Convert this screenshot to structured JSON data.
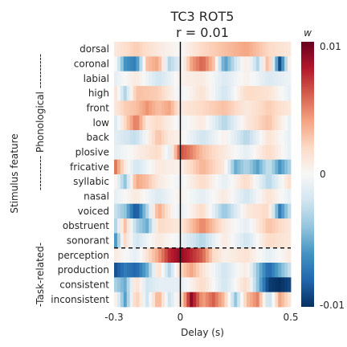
{
  "chart_data": {
    "type": "heatmap",
    "title": "TC3 ROT5",
    "subtitle": "r = 0.01",
    "xlabel": "Delay (s)",
    "ylabel": "Stimulus feature",
    "group_labels": [
      "---------- Phonological ----------",
      "-Task-related-"
    ],
    "x_range": [
      -0.3,
      0.5
    ],
    "x_ticks": [
      "-0.3",
      "0",
      "0.5"
    ],
    "x_tick_values": [
      -0.3,
      0,
      0.5
    ],
    "colorbar": {
      "label": "w",
      "ticks": [
        "0.01",
        "0",
        "-0.01"
      ],
      "tick_values": [
        0.01,
        0,
        -0.01
      ],
      "range": [
        -0.01,
        0.01
      ],
      "colormap": "RdBu_r"
    },
    "features": [
      "dorsal",
      "coronal",
      "labial",
      "high",
      "front",
      "low",
      "back",
      "plosive",
      "fricative",
      "syllabic",
      "nasal",
      "voiced",
      "obstruent",
      "sonorant",
      "perception",
      "production",
      "consistent",
      "inconsistent"
    ],
    "separator_after_row": 13,
    "zero_line_x": 0,
    "profiles": [
      [
        [
          -0.3,
          0.1
        ],
        [
          -0.2,
          0.25
        ],
        [
          -0.1,
          0.1
        ],
        [
          0,
          0
        ],
        [
          0.1,
          0.2
        ],
        [
          0.2,
          0.3
        ],
        [
          0.3,
          0.4
        ],
        [
          0.4,
          0.2
        ],
        [
          0.5,
          0.1
        ]
      ],
      [
        [
          -0.3,
          0.1
        ],
        [
          -0.25,
          -0.6
        ],
        [
          -0.2,
          -0.7
        ],
        [
          -0.15,
          0.3
        ],
        [
          -0.1,
          0.4
        ],
        [
          -0.05,
          -0.3
        ],
        [
          0,
          -0.1
        ],
        [
          0.05,
          0.4
        ],
        [
          0.1,
          0.6
        ],
        [
          0.15,
          0.3
        ],
        [
          0.2,
          -0.6
        ],
        [
          0.25,
          -0.2
        ],
        [
          0.3,
          0.1
        ],
        [
          0.35,
          -0.3
        ],
        [
          0.4,
          0.4
        ],
        [
          0.45,
          -0.9
        ],
        [
          0.5,
          0.2
        ]
      ],
      [
        [
          -0.3,
          -0.1
        ],
        [
          -0.2,
          0.1
        ],
        [
          -0.1,
          -0.2
        ],
        [
          0,
          0.05
        ],
        [
          0.1,
          0.1
        ],
        [
          0.2,
          -0.15
        ],
        [
          0.3,
          0.05
        ],
        [
          0.4,
          -0.15
        ],
        [
          0.5,
          -0.05
        ]
      ],
      [
        [
          -0.3,
          0.2
        ],
        [
          -0.25,
          -0.3
        ],
        [
          -0.2,
          0.3
        ],
        [
          -0.1,
          0.25
        ],
        [
          0,
          -0.05
        ],
        [
          0.1,
          0.15
        ],
        [
          0.2,
          -0.2
        ],
        [
          0.3,
          0.2
        ],
        [
          0.4,
          0.15
        ],
        [
          0.5,
          -0.1
        ]
      ],
      [
        [
          -0.3,
          0.1
        ],
        [
          -0.25,
          0.25
        ],
        [
          -0.2,
          0.3
        ],
        [
          -0.15,
          0.45
        ],
        [
          -0.1,
          0.3
        ],
        [
          -0.05,
          0.4
        ],
        [
          0,
          0.1
        ],
        [
          0.1,
          0.2
        ],
        [
          0.2,
          0.3
        ],
        [
          0.3,
          0.1
        ],
        [
          0.4,
          0.25
        ],
        [
          0.5,
          0.1
        ]
      ],
      [
        [
          -0.3,
          -0.2
        ],
        [
          -0.25,
          0.2
        ],
        [
          -0.2,
          0.55
        ],
        [
          -0.15,
          0.1
        ],
        [
          -0.1,
          0.2
        ],
        [
          0,
          -0.05
        ],
        [
          0.1,
          0.1
        ],
        [
          0.2,
          -0.3
        ],
        [
          0.3,
          0.1
        ],
        [
          0.4,
          0.3
        ],
        [
          0.5,
          -0.1
        ]
      ],
      [
        [
          -0.3,
          -0.1
        ],
        [
          -0.2,
          -0.25
        ],
        [
          -0.1,
          0.3
        ],
        [
          -0.05,
          0.1
        ],
        [
          0,
          0.05
        ],
        [
          0.1,
          -0.2
        ],
        [
          0.2,
          0.05
        ],
        [
          0.3,
          -0.3
        ],
        [
          0.4,
          0.15
        ],
        [
          0.5,
          -0.1
        ]
      ],
      [
        [
          -0.3,
          -0.1
        ],
        [
          -0.2,
          0.05
        ],
        [
          -0.1,
          0.2
        ],
        [
          -0.05,
          -0.1
        ],
        [
          0,
          0.65
        ],
        [
          0.05,
          0.5
        ],
        [
          0.1,
          0.3
        ],
        [
          0.2,
          0.1
        ],
        [
          0.3,
          -0.1
        ],
        [
          0.4,
          0.2
        ],
        [
          0.5,
          -0.1
        ]
      ],
      [
        [
          -0.3,
          0.6
        ],
        [
          -0.25,
          0.1
        ],
        [
          -0.2,
          -0.2
        ],
        [
          -0.1,
          0.1
        ],
        [
          0,
          0.05
        ],
        [
          0.1,
          0.35
        ],
        [
          0.2,
          0.1
        ],
        [
          0.25,
          -0.5
        ],
        [
          0.3,
          -0.3
        ],
        [
          0.35,
          -0.55
        ],
        [
          0.4,
          -0.2
        ],
        [
          0.45,
          -0.6
        ],
        [
          0.5,
          -0.3
        ]
      ],
      [
        [
          -0.3,
          0.1
        ],
        [
          -0.25,
          -0.4
        ],
        [
          -0.2,
          0.4
        ],
        [
          -0.15,
          0.3
        ],
        [
          -0.1,
          0.1
        ],
        [
          0,
          -0.05
        ],
        [
          0.1,
          0.2
        ],
        [
          0.2,
          -0.1
        ],
        [
          0.3,
          0.2
        ],
        [
          0.4,
          -0.3
        ],
        [
          0.5,
          0.2
        ]
      ],
      [
        [
          -0.3,
          -0.1
        ],
        [
          -0.2,
          0.1
        ],
        [
          -0.1,
          -0.15
        ],
        [
          0,
          0.05
        ],
        [
          0.1,
          -0.1
        ],
        [
          0.2,
          0.1
        ],
        [
          0.3,
          -0.2
        ],
        [
          0.4,
          0.15
        ],
        [
          0.5,
          -0.1
        ]
      ],
      [
        [
          -0.3,
          -0.2
        ],
        [
          -0.25,
          -0.4
        ],
        [
          -0.2,
          -0.9
        ],
        [
          -0.15,
          -0.3
        ],
        [
          -0.1,
          0.4
        ],
        [
          -0.05,
          0.1
        ],
        [
          0,
          -0.1
        ],
        [
          0.1,
          0.2
        ],
        [
          0.2,
          -0.4
        ],
        [
          0.3,
          0.1
        ],
        [
          0.4,
          0.2
        ],
        [
          0.45,
          -0.7
        ],
        [
          0.5,
          -0.2
        ]
      ],
      [
        [
          -0.3,
          -0.4
        ],
        [
          -0.25,
          0.3
        ],
        [
          -0.2,
          -0.3
        ],
        [
          -0.15,
          -0.5
        ],
        [
          -0.1,
          0.2
        ],
        [
          0,
          0.1
        ],
        [
          0.1,
          0.5
        ],
        [
          0.15,
          0.3
        ],
        [
          0.2,
          0.1
        ],
        [
          0.3,
          -0.1
        ],
        [
          0.4,
          0.3
        ],
        [
          0.5,
          0.1
        ]
      ],
      [
        [
          -0.3,
          -0.7
        ],
        [
          -0.25,
          0.2
        ],
        [
          -0.2,
          -0.2
        ],
        [
          -0.1,
          0.1
        ],
        [
          0,
          -0.05
        ],
        [
          0.1,
          -0.3
        ],
        [
          0.2,
          0.1
        ],
        [
          0.3,
          -0.2
        ],
        [
          0.4,
          0.2
        ],
        [
          0.5,
          0.1
        ]
      ],
      [
        [
          -0.3,
          0.1
        ],
        [
          -0.2,
          -0.1
        ],
        [
          -0.1,
          0.4
        ],
        [
          -0.05,
          0.75
        ],
        [
          0,
          0.9
        ],
        [
          0.05,
          0.75
        ],
        [
          0.1,
          0.6
        ],
        [
          0.15,
          0.2
        ],
        [
          0.2,
          0.05
        ],
        [
          0.3,
          0.15
        ],
        [
          0.4,
          -0.1
        ],
        [
          0.5,
          0.1
        ]
      ],
      [
        [
          -0.3,
          -0.9
        ],
        [
          -0.25,
          -0.7
        ],
        [
          -0.2,
          -0.8
        ],
        [
          -0.15,
          -0.5
        ],
        [
          -0.1,
          0.2
        ],
        [
          -0.05,
          -0.3
        ],
        [
          0,
          0.2
        ],
        [
          0.05,
          0.4
        ],
        [
          0.1,
          0.15
        ],
        [
          0.2,
          -0.2
        ],
        [
          0.3,
          0.1
        ],
        [
          0.35,
          -0.4
        ],
        [
          0.4,
          -0.8
        ],
        [
          0.45,
          -0.5
        ],
        [
          0.5,
          -0.2
        ]
      ],
      [
        [
          -0.3,
          -0.3
        ],
        [
          -0.25,
          -0.5
        ],
        [
          -0.2,
          0.2
        ],
        [
          -0.15,
          -0.2
        ],
        [
          -0.1,
          -0.1
        ],
        [
          0,
          -0.1
        ],
        [
          0.1,
          0.2
        ],
        [
          0.2,
          -0.2
        ],
        [
          0.3,
          0.2
        ],
        [
          0.35,
          -0.4
        ],
        [
          0.4,
          -0.95
        ],
        [
          0.45,
          -1
        ],
        [
          0.5,
          -0.9
        ]
      ],
      [
        [
          -0.3,
          0.15
        ],
        [
          -0.25,
          -0.55
        ],
        [
          -0.2,
          0.3
        ],
        [
          -0.15,
          -0.2
        ],
        [
          -0.1,
          0.4
        ],
        [
          -0.05,
          -0.2
        ],
        [
          0,
          0.1
        ],
        [
          0.05,
          0.9
        ],
        [
          0.1,
          0.4
        ],
        [
          0.15,
          0.6
        ],
        [
          0.2,
          0.3
        ],
        [
          0.25,
          -0.4
        ],
        [
          0.3,
          0.3
        ],
        [
          0.35,
          0.5
        ],
        [
          0.4,
          -0.3
        ],
        [
          0.45,
          0.4
        ],
        [
          0.5,
          0.1
        ]
      ]
    ]
  }
}
